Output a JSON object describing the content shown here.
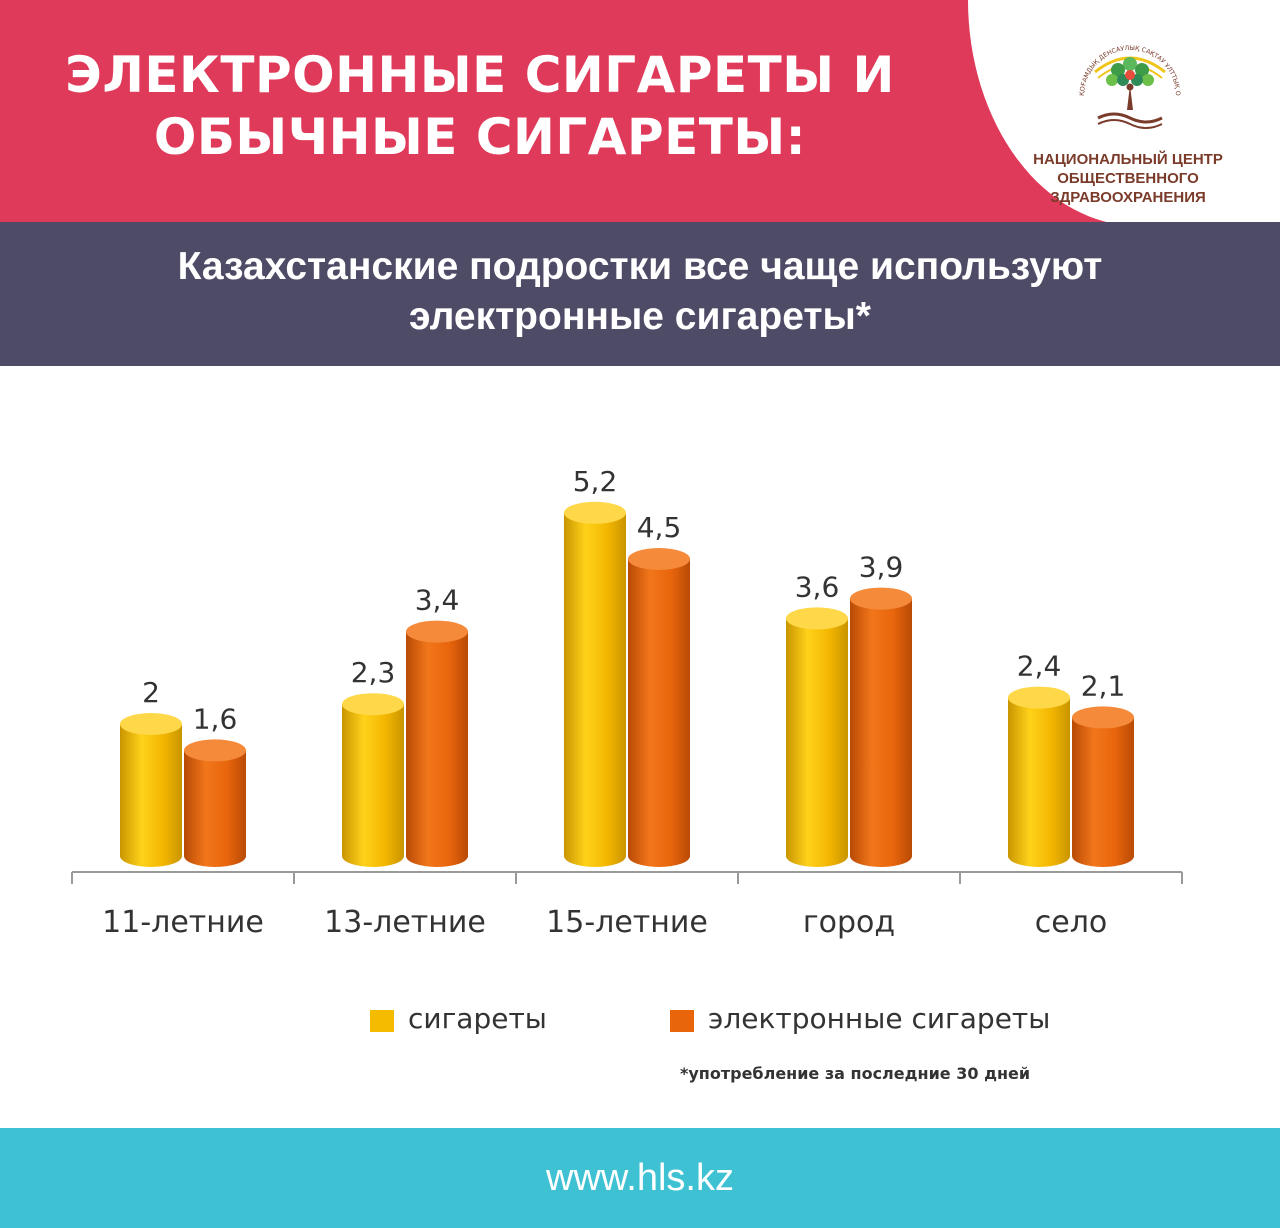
{
  "header": {
    "title_line1": "ЭЛЕКТРОННЫЕ СИГАРЕТЫ И",
    "title_line2": "ОБЫЧНЫЕ СИГАРЕТЫ:"
  },
  "logo": {
    "ring_text": "ҚОҒАМДЫҚ ДЕНСАУЛЫҚ САҚТАУ ҰЛТТЫҚ ОРТАЛЫҒЫ",
    "line1": "НАЦИОНАЛЬНЫЙ ЦЕНТР",
    "line2": "ОБЩЕСТВЕННОГО",
    "line3": "ЗДРАВООХРАНЕНИЯ",
    "icon": "tree-emblem-icon"
  },
  "subheader": {
    "line1": "Казахстанские подростки все чаще используют",
    "line2": "электронные сигареты*"
  },
  "chart_data": {
    "type": "bar",
    "categories": [
      "11-летние",
      "13-летние",
      "15-летние",
      "город",
      "село"
    ],
    "series": [
      {
        "name": "сигареты",
        "values": [
          2,
          2.3,
          5.2,
          3.6,
          2.4
        ],
        "value_labels": [
          "2",
          "2,3",
          "5,2",
          "3,6",
          "2,4"
        ],
        "color": "#f5bb00"
      },
      {
        "name": "электронные сигареты",
        "values": [
          1.6,
          3.4,
          4.5,
          3.9,
          2.1
        ],
        "value_labels": [
          "1,6",
          "3,4",
          "4,5",
          "3,9",
          "2,1"
        ],
        "color": "#e8650c"
      }
    ],
    "title": "",
    "xlabel": "",
    "ylabel": "",
    "ylim": [
      0,
      5.2
    ],
    "grid": false,
    "legend": "bottom",
    "style": "3d-cylinder"
  },
  "footnote": "*употребление за последние 30 дней",
  "footer": {
    "url": "www.hls.kz"
  }
}
